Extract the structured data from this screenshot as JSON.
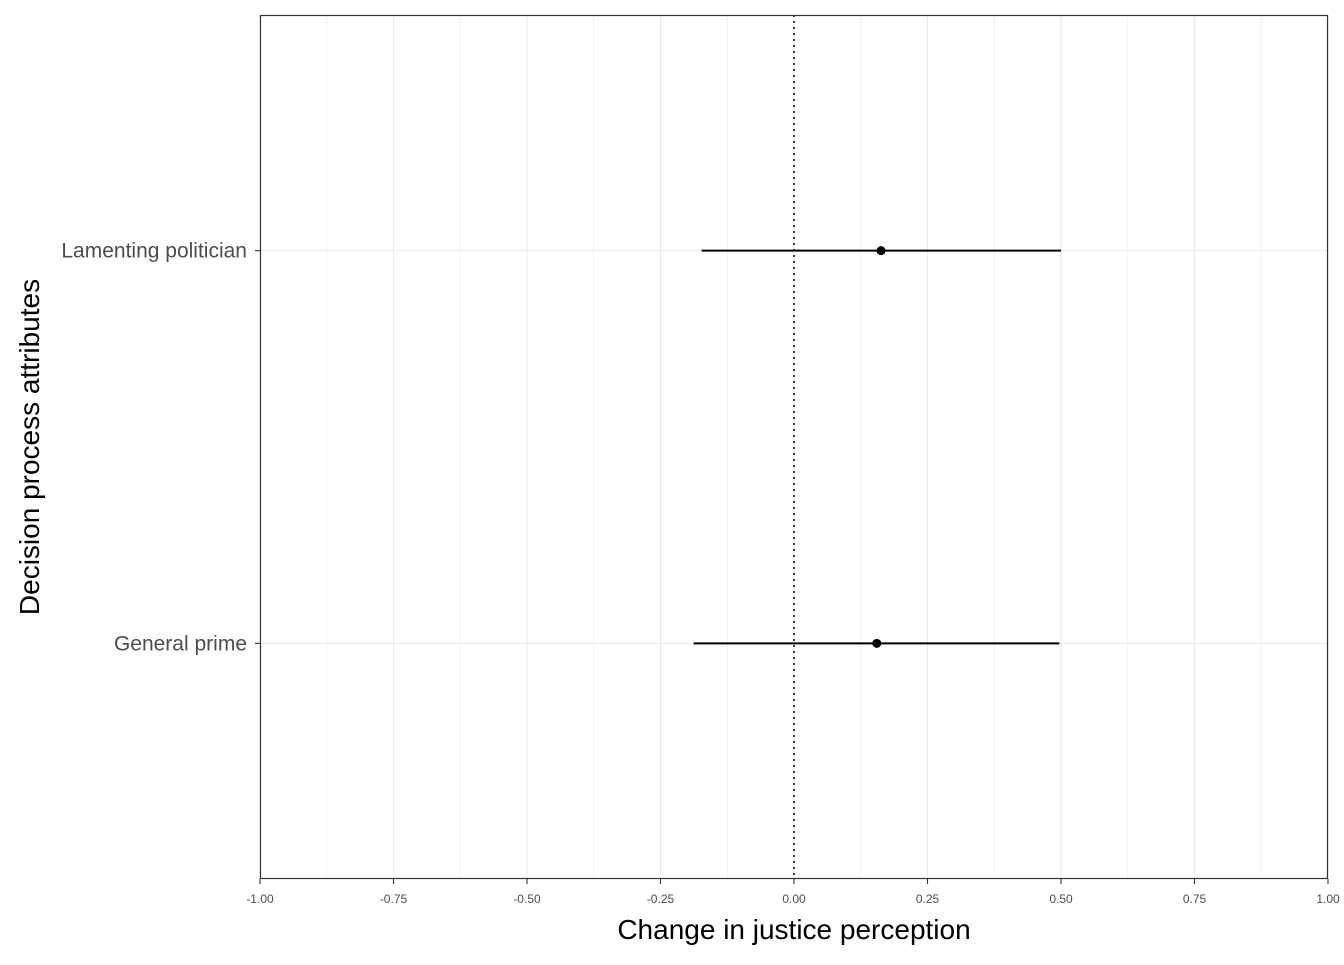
{
  "chart_data": {
    "type": "scatter",
    "subtype": "coefficient-plot-with-error-bars",
    "title": "",
    "xlabel": "Change in justice perception",
    "ylabel": "Decision process attributes",
    "xlim": [
      -1.0,
      1.0
    ],
    "x_ticks": [
      -1.0,
      -0.75,
      -0.5,
      -0.25,
      0.0,
      0.25,
      0.5,
      0.75,
      1.0
    ],
    "x_tick_labels": [
      "-1.00",
      "-0.75",
      "-0.50",
      "-0.25",
      "0.00",
      "0.25",
      "0.50",
      "0.75",
      "1.00"
    ],
    "categories": [
      "Lamenting politician",
      "General prime"
    ],
    "points": [
      {
        "category": "Lamenting politician",
        "estimate": 0.163,
        "lower": -0.173,
        "upper": 0.5
      },
      {
        "category": "General prime",
        "estimate": 0.155,
        "lower": -0.188,
        "upper": 0.497
      }
    ],
    "reference_line": {
      "x": 0.0,
      "style": "dotted"
    },
    "grid": true,
    "legend": "none",
    "colors": {
      "point": "#000000",
      "grid": "#ebebeb",
      "panel_border": "#333333",
      "tick_label": "#4d4d4d"
    }
  }
}
